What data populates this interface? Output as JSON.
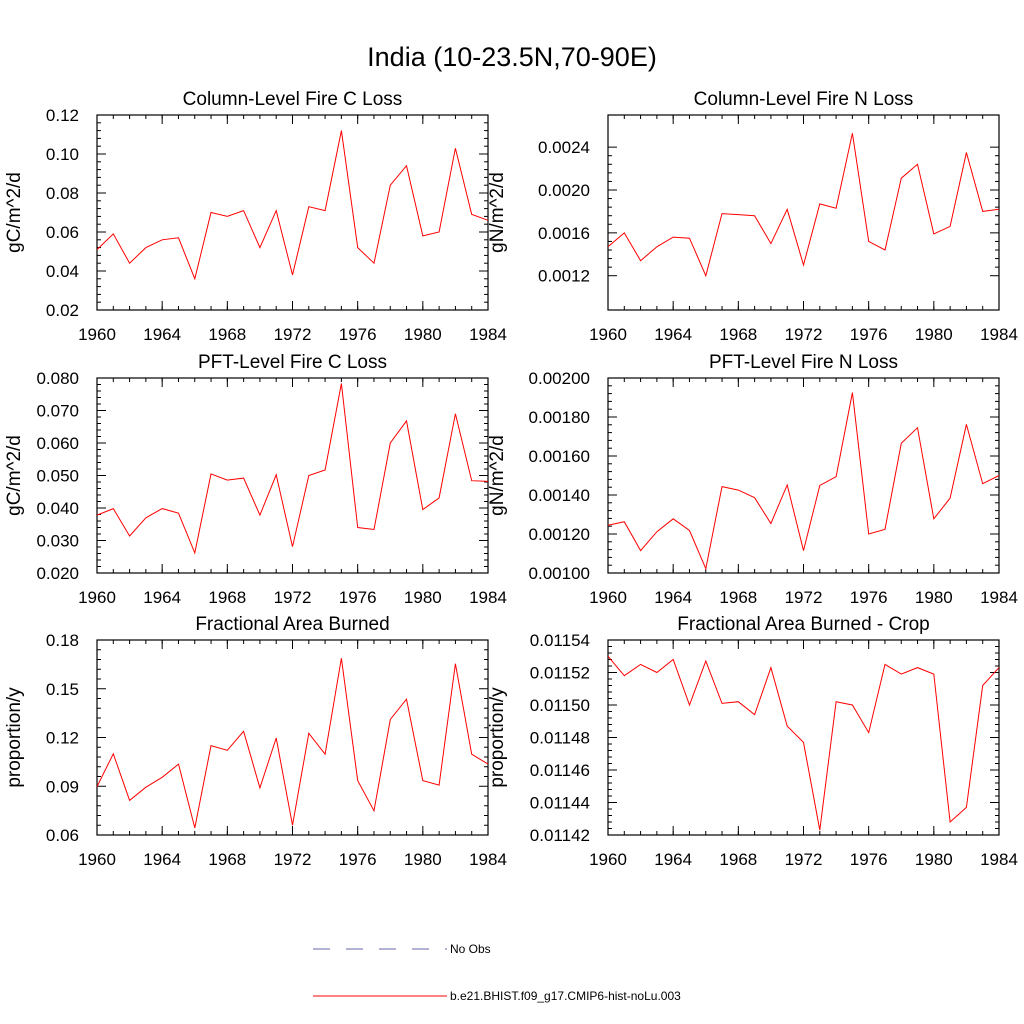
{
  "figure": {
    "title": "India (10-23.5N,70-90E)",
    "series_color": "#ff0000",
    "obs_color": "#6666aa",
    "legend": [
      {
        "label": "No Obs",
        "style": "dashed"
      },
      {
        "label": "b.e21.BHIST.f09_g17.CMIP6-hist-noLu.003",
        "style": "solid"
      }
    ]
  },
  "chart_data": [
    {
      "type": "line",
      "title": "Column-Level Fire C Loss",
      "ylabel": "gC/m^2/d",
      "xlim": [
        1960,
        1984
      ],
      "ylim": [
        0.02,
        0.12
      ],
      "xticks": [
        1960,
        1964,
        1968,
        1972,
        1976,
        1980,
        1984
      ],
      "yticks": [
        0.02,
        0.04,
        0.06,
        0.08,
        0.1,
        0.12
      ],
      "ytick_labels": [
        "0.02",
        "0.04",
        "0.06",
        "0.08",
        "0.10",
        "0.12"
      ],
      "x": [
        1960,
        1961,
        1962,
        1963,
        1964,
        1965,
        1966,
        1967,
        1968,
        1969,
        1970,
        1971,
        1972,
        1973,
        1974,
        1975,
        1976,
        1977,
        1978,
        1979,
        1980,
        1981,
        1982,
        1983,
        1984
      ],
      "series": [
        {
          "name": "b.e21.BHIST.f09_g17.CMIP6-hist-noLu.003",
          "values": [
            0.051,
            0.059,
            0.044,
            0.052,
            0.056,
            0.057,
            0.036,
            0.07,
            0.068,
            0.071,
            0.052,
            0.071,
            0.038,
            0.073,
            0.071,
            0.112,
            0.052,
            0.044,
            0.084,
            0.094,
            0.058,
            0.06,
            0.103,
            0.069,
            0.066
          ]
        }
      ]
    },
    {
      "type": "line",
      "title": "Column-Level Fire N Loss",
      "ylabel": "gN/m^2/d",
      "xlim": [
        1960,
        1984
      ],
      "ylim": [
        0.00088,
        0.0027
      ],
      "xticks": [
        1960,
        1964,
        1968,
        1972,
        1976,
        1980,
        1984
      ],
      "yticks": [
        0.0012,
        0.0016,
        0.002,
        0.0024
      ],
      "ytick_labels": [
        "0.0012",
        "0.0016",
        "0.0020",
        "0.0024"
      ],
      "x": [
        1960,
        1961,
        1962,
        1963,
        1964,
        1965,
        1966,
        1967,
        1968,
        1969,
        1970,
        1971,
        1972,
        1973,
        1974,
        1975,
        1976,
        1977,
        1978,
        1979,
        1980,
        1981,
        1982,
        1983,
        1984
      ],
      "series": [
        {
          "name": "b.e21.BHIST.f09_g17.CMIP6-hist-noLu.003",
          "values": [
            0.00147,
            0.0016,
            0.00134,
            0.00147,
            0.00156,
            0.00155,
            0.0012,
            0.00178,
            0.00177,
            0.00176,
            0.0015,
            0.00182,
            0.0013,
            0.00187,
            0.00183,
            0.00253,
            0.00152,
            0.00144,
            0.00211,
            0.00224,
            0.00159,
            0.00166,
            0.00235,
            0.0018,
            0.00182
          ]
        }
      ]
    },
    {
      "type": "line",
      "title": "PFT-Level Fire C Loss",
      "ylabel": "gC/m^2/d",
      "xlim": [
        1960,
        1984
      ],
      "ylim": [
        0.02,
        0.08
      ],
      "xticks": [
        1960,
        1964,
        1968,
        1972,
        1976,
        1980,
        1984
      ],
      "yticks": [
        0.02,
        0.03,
        0.04,
        0.05,
        0.06,
        0.07,
        0.08
      ],
      "ytick_labels": [
        "0.020",
        "0.030",
        "0.040",
        "0.050",
        "0.060",
        "0.070",
        "0.080"
      ],
      "x": [
        1960,
        1961,
        1962,
        1963,
        1964,
        1965,
        1966,
        1967,
        1968,
        1969,
        1970,
        1971,
        1972,
        1973,
        1974,
        1975,
        1976,
        1977,
        1978,
        1979,
        1980,
        1981,
        1982,
        1983,
        1984
      ],
      "series": [
        {
          "name": "b.e21.BHIST.f09_g17.CMIP6-hist-noLu.003",
          "values": [
            0.0378,
            0.0398,
            0.0314,
            0.037,
            0.0398,
            0.0384,
            0.0262,
            0.0505,
            0.0486,
            0.0492,
            0.0378,
            0.0502,
            0.0281,
            0.05,
            0.0517,
            0.0783,
            0.034,
            0.0334,
            0.06,
            0.0668,
            0.0395,
            0.0431,
            0.069,
            0.0484,
            0.0482
          ]
        }
      ]
    },
    {
      "type": "line",
      "title": "PFT-Level Fire N Loss",
      "ylabel": "gN/m^2/d",
      "xlim": [
        1960,
        1984
      ],
      "ylim": [
        0.001,
        0.002
      ],
      "xticks": [
        1960,
        1964,
        1968,
        1972,
        1976,
        1980,
        1984
      ],
      "yticks": [
        0.001,
        0.0012,
        0.0014,
        0.0016,
        0.0018,
        0.002
      ],
      "ytick_labels": [
        "0.00100",
        "0.00120",
        "0.00140",
        "0.00160",
        "0.00180",
        "0.00200"
      ],
      "x": [
        1960,
        1961,
        1962,
        1963,
        1964,
        1965,
        1966,
        1967,
        1968,
        1969,
        1970,
        1971,
        1972,
        1973,
        1974,
        1975,
        1976,
        1977,
        1978,
        1979,
        1980,
        1981,
        1982,
        1983,
        1984
      ],
      "series": [
        {
          "name": "b.e21.BHIST.f09_g17.CMIP6-hist-noLu.003",
          "values": [
            0.001245,
            0.001263,
            0.001115,
            0.001212,
            0.001278,
            0.001218,
            0.001022,
            0.001443,
            0.001425,
            0.001386,
            0.001254,
            0.001452,
            0.001115,
            0.001449,
            0.001494,
            0.001925,
            0.0012,
            0.001224,
            0.001665,
            0.001745,
            0.001278,
            0.001384,
            0.001762,
            0.001458,
            0.0015
          ]
        }
      ]
    },
    {
      "type": "line",
      "title": "Fractional Area Burned",
      "ylabel": "proportion/y",
      "xlim": [
        1960,
        1984
      ],
      "ylim": [
        0.06,
        0.18
      ],
      "xticks": [
        1960,
        1964,
        1968,
        1972,
        1976,
        1980,
        1984
      ],
      "yticks": [
        0.06,
        0.09,
        0.12,
        0.15,
        0.18
      ],
      "ytick_labels": [
        "0.06",
        "0.09",
        "0.12",
        "0.15",
        "0.18"
      ],
      "x": [
        1960,
        1961,
        1962,
        1963,
        1964,
        1965,
        1966,
        1967,
        1968,
        1969,
        1970,
        1971,
        1972,
        1973,
        1974,
        1975,
        1976,
        1977,
        1978,
        1979,
        1980,
        1981,
        1982,
        1983,
        1984
      ],
      "series": [
        {
          "name": "b.e21.BHIST.f09_g17.CMIP6-hist-noLu.003",
          "values": [
            0.0898,
            0.11,
            0.0813,
            0.0894,
            0.0955,
            0.1036,
            0.0644,
            0.115,
            0.1121,
            0.1238,
            0.089,
            0.1197,
            0.066,
            0.1226,
            0.1097,
            0.1688,
            0.0935,
            0.0749,
            0.1311,
            0.1436,
            0.0935,
            0.0907,
            0.1654,
            0.1097,
            0.1036
          ]
        }
      ]
    },
    {
      "type": "line",
      "title": "Fractional Area Burned - Crop",
      "ylabel": "proportion/y",
      "xlim": [
        1960,
        1984
      ],
      "ylim": [
        0.01142,
        0.01154
      ],
      "xticks": [
        1960,
        1964,
        1968,
        1972,
        1976,
        1980,
        1984
      ],
      "yticks": [
        0.01142,
        0.01144,
        0.01146,
        0.01148,
        0.0115,
        0.01152,
        0.01154
      ],
      "ytick_labels": [
        "0.01142",
        "0.01144",
        "0.01146",
        "0.01148",
        "0.01150",
        "0.01152",
        "0.01154"
      ],
      "x": [
        1960,
        1961,
        1962,
        1963,
        1964,
        1965,
        1966,
        1967,
        1968,
        1969,
        1970,
        1971,
        1972,
        1973,
        1974,
        1975,
        1976,
        1977,
        1978,
        1979,
        1980,
        1981,
        1982,
        1983,
        1984
      ],
      "series": [
        {
          "name": "b.e21.BHIST.f09_g17.CMIP6-hist-noLu.003",
          "values": [
            0.01153,
            0.011518,
            0.011525,
            0.01152,
            0.011528,
            0.0115,
            0.011527,
            0.011501,
            0.011502,
            0.011494,
            0.011523,
            0.011487,
            0.011477,
            0.011423,
            0.011502,
            0.0115,
            0.011483,
            0.011525,
            0.011519,
            0.011523,
            0.011519,
            0.011428,
            0.011437,
            0.011512,
            0.011523
          ]
        }
      ]
    }
  ]
}
